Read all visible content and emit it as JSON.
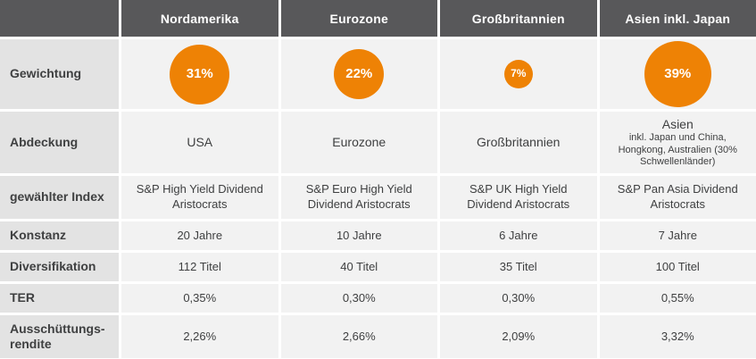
{
  "colors": {
    "accent": "#ee8205",
    "header_bg": "#58585a",
    "header_text": "#ffffff",
    "label_bg": "#e3e3e3",
    "cell_bg": "#f2f2f2",
    "text": "#3f4041",
    "background": "#ffffff"
  },
  "chart_data": {
    "type": "table",
    "title": "",
    "row_labels": [
      "Gewichtung",
      "Abdeckung",
      "gewählter Index",
      "Konstanz",
      "Diversifikation",
      "TER",
      "Ausschüttungs-rendite"
    ],
    "weights_pct": [
      31,
      22,
      7,
      39
    ],
    "columns": [
      {
        "header": "Nordamerika",
        "weight_label": "31%",
        "weight_value": 31,
        "abdeckung": "USA",
        "abdeckung_note": "",
        "index": "S&P High Yield Dividend Aristocrats",
        "konstanz": "20 Jahre",
        "diversifikation": "112 Titel",
        "ter": "0,35%",
        "ausschuettungsrendite": "2,26%"
      },
      {
        "header": "Eurozone",
        "weight_label": "22%",
        "weight_value": 22,
        "abdeckung": "Eurozone",
        "abdeckung_note": "",
        "index": "S&P Euro High Yield Dividend Aristocrats",
        "konstanz": "10 Jahre",
        "diversifikation": "40 Titel",
        "ter": "0,30%",
        "ausschuettungsrendite": "2,66%"
      },
      {
        "header": "Großbritannien",
        "weight_label": "7%",
        "weight_value": 7,
        "abdeckung": "Großbritannien",
        "abdeckung_note": "",
        "index": "S&P UK High Yield Dividend Aristocrats",
        "konstanz": "6 Jahre",
        "diversifikation": "35 Titel",
        "ter": "0,30%",
        "ausschuettungsrendite": "2,09%"
      },
      {
        "header": "Asien inkl. Japan",
        "weight_label": "39%",
        "weight_value": 39,
        "abdeckung": "Asien",
        "abdeckung_note": "inkl. Japan und China, Hongkong, Australien (30% Schwellenländer)",
        "index": "S&P Pan Asia Dividend Aristocrats",
        "konstanz": "7 Jahre",
        "diversifikation": "100 Titel",
        "ter": "0,55%",
        "ausschuettungsrendite": "3,32%"
      }
    ]
  }
}
